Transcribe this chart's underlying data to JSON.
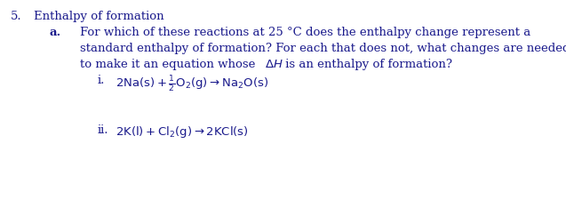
{
  "background_color": "#ffffff",
  "text_color": "#1a1a8c",
  "font_family": "DejaVu Serif",
  "title_num": "5.",
  "title_text": "Enthalpy of formation",
  "sub_label": "a.",
  "line1": "For which of these reactions at 25 °C does the enthalpy change represent a",
  "line2": "standard enthalpy of formation? For each that does not, what changes are needed",
  "line3": "to make it an equation whose ΔH is an enthalpy of formation?",
  "item_i_label": "i.",
  "item_ii_label": "ii.",
  "formula_i": "$\\mathregular{2Na(s)+\\frac{1}{2}O_2(g)\\rightarrow Na_2O(s)}$",
  "formula_ii": "$\\mathregular{2K(l)+Cl_2(g)\\rightarrow 2KCl(s)}$",
  "fontsize": 9.5,
  "fig_width": 6.37,
  "fig_height": 2.25,
  "dpi": 100
}
